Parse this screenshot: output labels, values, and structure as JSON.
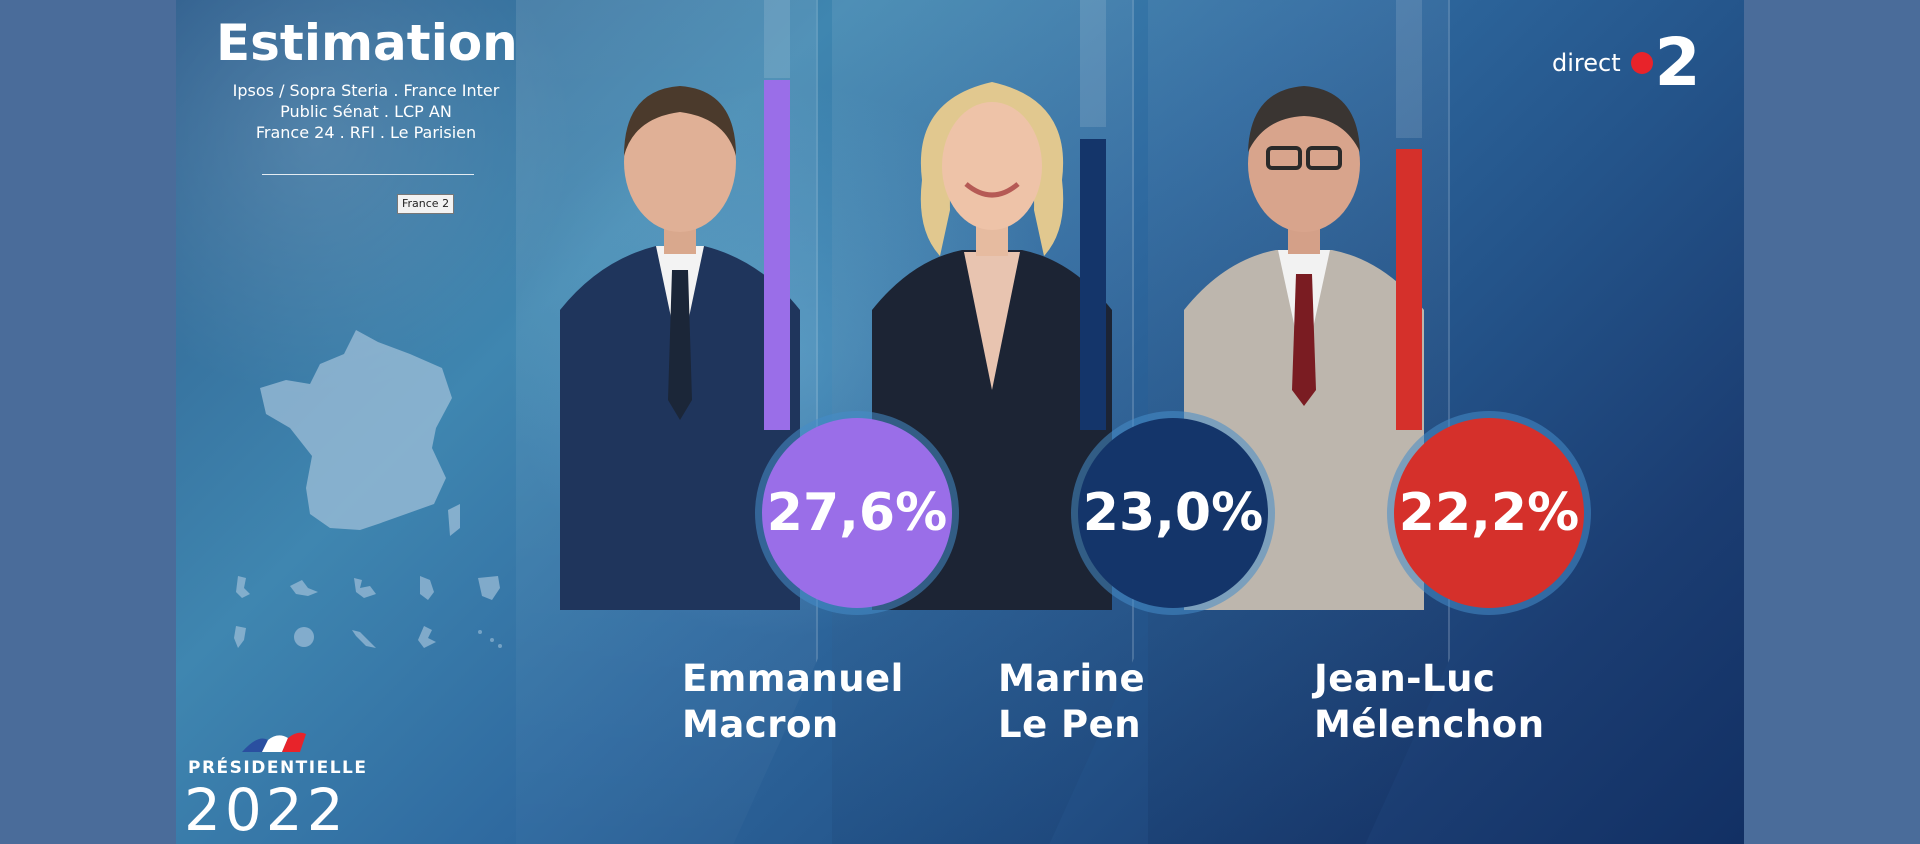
{
  "header": {
    "title": "Estimation",
    "sources": [
      "Ipsos / Sopra Steria . France Inter",
      "Public Sénat . LCP AN",
      "France 24 . RFI . Le Parisien"
    ],
    "channel_chip": "France 2"
  },
  "branding": {
    "election_label": "PRÉSIDENTIELLE",
    "election_year": "2022",
    "channel_label": "direct",
    "channel_number": "2"
  },
  "results": {
    "type": "bar",
    "categories": [
      "Emmanuel Macron",
      "Marine Le Pen",
      "Jean-Luc Mélenchon"
    ],
    "values": [
      27.6,
      23.0,
      22.2
    ],
    "unit": "%",
    "candidates": [
      {
        "first_name": "Emmanuel",
        "last_name": "Macron",
        "score": "27,6%",
        "value": 27.6,
        "color": "#9a6ee8"
      },
      {
        "first_name": "Marine",
        "last_name": "Le Pen",
        "score": "23,0%",
        "value": 23.0,
        "color": "#14356a"
      },
      {
        "first_name": "Jean-Luc",
        "last_name": "Mélenchon",
        "score": "22,2%",
        "value": 22.2,
        "color": "#d5302b"
      }
    ]
  },
  "colors": {
    "background": "#4a6c9a",
    "macron": "#9a6ee8",
    "lepen": "#14356a",
    "melenchon": "#d5302b",
    "channel_red": "#e8232a"
  },
  "icons": [
    "france-map-icon",
    "overseas-territories-icon",
    "tricolor-flag-icon"
  ]
}
